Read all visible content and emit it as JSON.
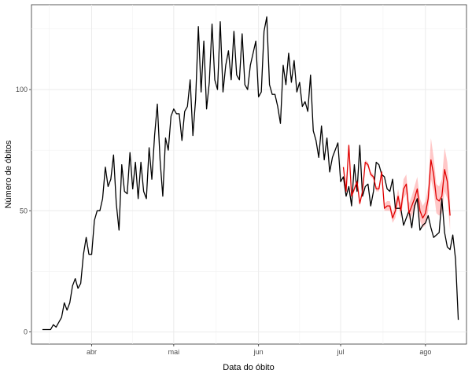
{
  "chart_data": {
    "type": "line",
    "title": "",
    "xlabel": "Data do óbito",
    "ylabel": "Número de óbitos",
    "x_start": "2020-03-14",
    "xlim": [
      "2020-03-10",
      "2020-08-16"
    ],
    "ylim": [
      -5,
      135
    ],
    "x_ticks": [
      {
        "date": "2020-04-01",
        "label": "abr"
      },
      {
        "date": "2020-05-01",
        "label": "mai"
      },
      {
        "date": "2020-06-01",
        "label": "jun"
      },
      {
        "date": "2020-07-01",
        "label": "jul"
      },
      {
        "date": "2020-08-01",
        "label": "ago"
      }
    ],
    "y_ticks": [
      0,
      50,
      100
    ],
    "y_minor_ticks": [
      25,
      75,
      125
    ],
    "grid": true,
    "series": [
      {
        "color": "#000000",
        "values": [
          1,
          1,
          1,
          1,
          3,
          2,
          4,
          6,
          12,
          9,
          12,
          19,
          22,
          18,
          20,
          32,
          39,
          32,
          32,
          46,
          50,
          50,
          55,
          68,
          60,
          63,
          73,
          53,
          42,
          69,
          58,
          57,
          74,
          59,
          70,
          55,
          70,
          58,
          55,
          76,
          63,
          81,
          94,
          71,
          56,
          80,
          75,
          89,
          92,
          90,
          90,
          79,
          91,
          93,
          104,
          81,
          96,
          126,
          99,
          120,
          92,
          103,
          127,
          104,
          100,
          128,
          99,
          110,
          116,
          104,
          124,
          106,
          104,
          123,
          102,
          100,
          110,
          115,
          120,
          97,
          99,
          124,
          130,
          102,
          98,
          98,
          93,
          86,
          110,
          102,
          115,
          103,
          112,
          99,
          103,
          93,
          95,
          91,
          106,
          83,
          79,
          72,
          85,
          71,
          80,
          66,
          72,
          75,
          78,
          62,
          64,
          56,
          60,
          52,
          69,
          58,
          77,
          56,
          60,
          61,
          52,
          58,
          70,
          69,
          65,
          64,
          59,
          58,
          63,
          51,
          51,
          51,
          44,
          47,
          50,
          43,
          52,
          55,
          42,
          44,
          45,
          48,
          43,
          39,
          40,
          41,
          55,
          41,
          35,
          34,
          40,
          30,
          5
        ]
      },
      {
        "color": "#e00000",
        "band_color": "#ff9999",
        "start_index": 110,
        "values": [
          68,
          58,
          77,
          56,
          59,
          62,
          53,
          58,
          70,
          69,
          65,
          64,
          59,
          59,
          66,
          51,
          52,
          52,
          47,
          50,
          56,
          50,
          59,
          61,
          49,
          52,
          55,
          59,
          50,
          47,
          49,
          55,
          71,
          65,
          55,
          54,
          56,
          67,
          62,
          48
        ],
        "lower": [
          67,
          57,
          76,
          55,
          58,
          61,
          52,
          57,
          69,
          68,
          64,
          63,
          58,
          58,
          64,
          50,
          50,
          50,
          45,
          47,
          53,
          47,
          55,
          57,
          46,
          48,
          50,
          54,
          46,
          43,
          44,
          50,
          63,
          58,
          49,
          48,
          49,
          58,
          55,
          42
        ],
        "upper": [
          69,
          59,
          78,
          57,
          60,
          63,
          54,
          59,
          71,
          70,
          66,
          65,
          60,
          60,
          67,
          53,
          54,
          54,
          49,
          53,
          59,
          53,
          63,
          65,
          53,
          56,
          60,
          64,
          55,
          52,
          54,
          60,
          80,
          72,
          61,
          60,
          63,
          76,
          70,
          55
        ]
      }
    ]
  }
}
